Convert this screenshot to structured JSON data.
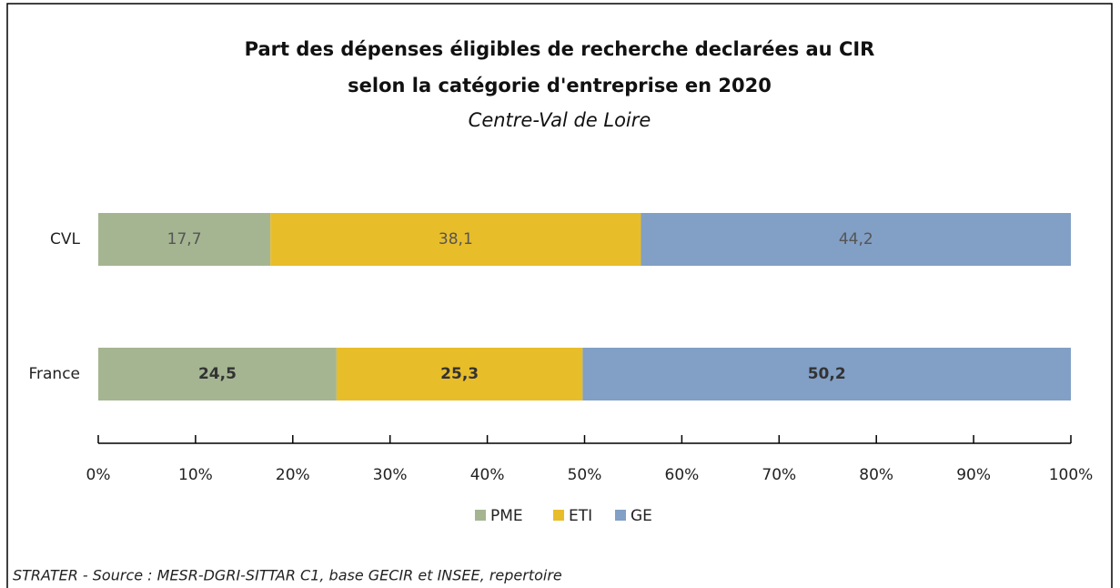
{
  "chart_data": {
    "type": "stacked_barh",
    "title": [
      "Part des dépenses éligibles de recherche declarées au CIR",
      "selon la catégorie d'entreprise en 2020"
    ],
    "subtitle": "Centre-Val de Loire",
    "categories": [
      "CVL",
      "France"
    ],
    "series": [
      {
        "name": "PME",
        "color": "#a5b592",
        "values": [
          17.7,
          24.5
        ],
        "value_labels": [
          "17,7",
          "24,5"
        ]
      },
      {
        "name": "ETI",
        "color": "#e8bd2a",
        "values": [
          38.1,
          25.3
        ],
        "value_labels": [
          "38,1",
          "25,3"
        ]
      },
      {
        "name": "GE",
        "color": "#829fc5",
        "values": [
          44.2,
          50.2
        ],
        "value_labels": [
          "44,2",
          "50,2"
        ]
      }
    ],
    "xlim": [
      0,
      100
    ],
    "xticks": [
      {
        "value": 0,
        "label": "0%"
      },
      {
        "value": 10,
        "label": "10%"
      },
      {
        "value": 20,
        "label": "20%"
      },
      {
        "value": 30,
        "label": "30%"
      },
      {
        "value": 40,
        "label": "40%"
      },
      {
        "value": 50,
        "label": "50%"
      },
      {
        "value": 60,
        "label": "60%"
      },
      {
        "value": 70,
        "label": "70%"
      },
      {
        "value": 80,
        "label": "80%"
      },
      {
        "value": 90,
        "label": "90%"
      },
      {
        "value": 100,
        "label": "100%"
      }
    ],
    "legend": "bottom",
    "source": "STRATER - Source : MESR-DGRI-SITTAR C1, base GECIR et INSEE, repertoire"
  }
}
